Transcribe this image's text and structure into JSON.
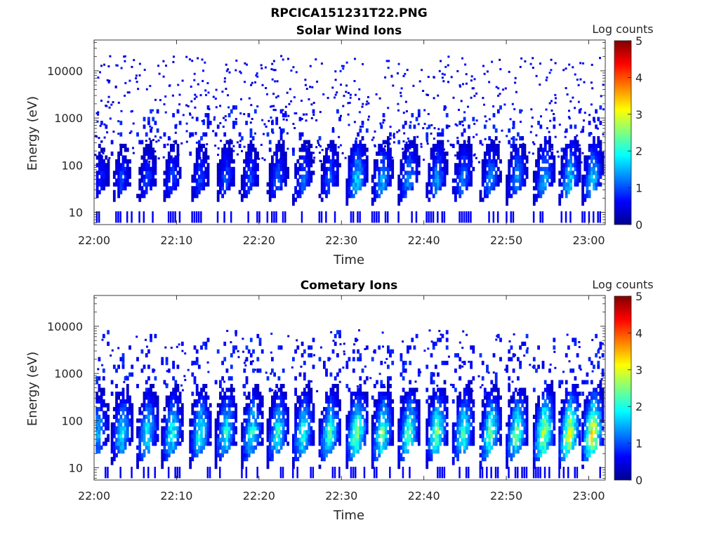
{
  "figure_title": "RPCICA151231T22.PNG",
  "chart_data": [
    {
      "type": "heatmap",
      "title": "Solar Wind Ions",
      "xlabel": "Time",
      "ylabel": "Energy (eV)",
      "x_ticks": [
        "22:00",
        "22:10",
        "22:20",
        "22:30",
        "22:40",
        "22:50",
        "23:00"
      ],
      "xlim_minutes_after_2200": [
        0,
        62
      ],
      "y_ticks": [
        "10",
        "100",
        "1000",
        "10000"
      ],
      "ylim": [
        5.5,
        45000
      ],
      "y_scale": "log",
      "colorbar": {
        "label": "Log counts",
        "ticks": [
          "0",
          "1",
          "2",
          "3",
          "4",
          "5"
        ],
        "range": [
          0,
          5
        ],
        "colormap": "jet"
      },
      "bursts_minute": [
        0.5,
        3.1,
        6.2,
        9.2,
        12.6,
        15.7,
        18.6,
        22.0,
        25.1,
        28.3,
        31.6,
        34.7,
        37.9,
        41.3,
        44.5,
        47.8,
        51.0,
        54.3,
        57.4,
        60.2
      ],
      "peak_log_counts": [
        0.9,
        1.1,
        1.1,
        1.1,
        1.1,
        1.2,
        1.2,
        1.3,
        1.4,
        1.3,
        2.0,
        1.7,
        1.6,
        1.6,
        1.5,
        1.5,
        1.6,
        1.8,
        2.0,
        2.0
      ],
      "core_energy_eV": [
        25,
        300
      ]
    },
    {
      "type": "heatmap",
      "title": "Cometary Ions",
      "xlabel": "Time",
      "ylabel": "Energy (eV)",
      "x_ticks": [
        "22:00",
        "22:10",
        "22:20",
        "22:30",
        "22:40",
        "22:50",
        "23:00"
      ],
      "xlim_minutes_after_2200": [
        0,
        62
      ],
      "y_ticks": [
        "10",
        "100",
        "1000",
        "10000"
      ],
      "ylim": [
        5.5,
        45000
      ],
      "y_scale": "log",
      "colorbar": {
        "label": "Log counts",
        "ticks": [
          "0",
          "1",
          "2",
          "3",
          "4",
          "5"
        ],
        "range": [
          0,
          5
        ],
        "colormap": "jet"
      },
      "bursts_minute": [
        0.2,
        3.1,
        6.2,
        9.2,
        12.6,
        15.7,
        18.9,
        22.0,
        25.1,
        28.3,
        31.6,
        34.7,
        37.9,
        41.3,
        44.5,
        47.8,
        51.0,
        54.3,
        57.4,
        60.2
      ],
      "peak_log_counts": [
        1.8,
        2.2,
        2.3,
        2.3,
        2.4,
        2.4,
        2.4,
        2.4,
        2.5,
        2.6,
        3.1,
        2.8,
        2.7,
        2.9,
        2.6,
        2.8,
        2.9,
        3.4,
        3.6,
        3.8
      ],
      "core_energy_eV": [
        20,
        450
      ]
    }
  ]
}
